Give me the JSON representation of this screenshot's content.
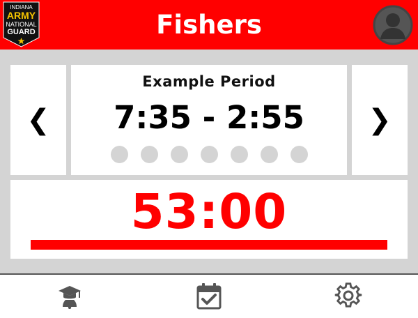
{
  "header": {
    "title": "Fishers",
    "logo_text": {
      "line1": "INDIANA",
      "line2": "ARMY",
      "line3": "NATIONAL",
      "line4": "GUARD"
    }
  },
  "schedule": {
    "prev_label": "❮",
    "next_label": "❯",
    "period_name": "Example Period",
    "period_time": "7:35 - 2:55",
    "period_dot_count": 7
  },
  "timer": {
    "countdown": "53:00",
    "progress_fraction": 1.0
  },
  "colors": {
    "accent": "#ff0000",
    "background": "#d4d4d4",
    "dot": "#d4d4d4",
    "icon": "#555555"
  },
  "footer": {
    "icons": [
      "graduation-bell-icon",
      "calendar-check-icon",
      "gear-icon"
    ]
  }
}
